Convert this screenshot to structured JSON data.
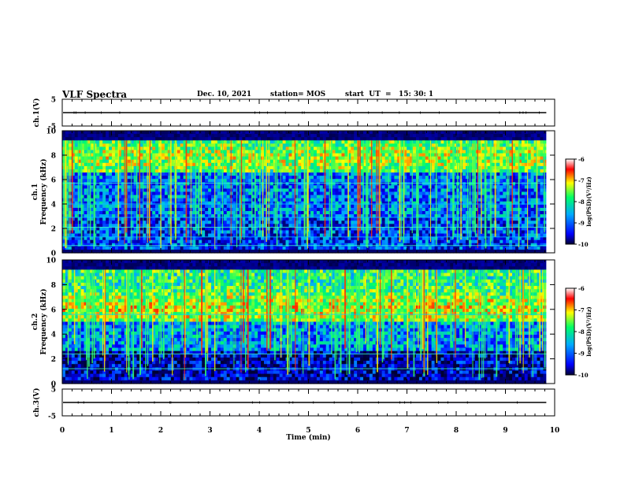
{
  "header": {
    "title": "VLF Spectra",
    "date": "Dec. 10, 2021",
    "station": "station= MOS",
    "start": "start  UT  =   15: 30: 1"
  },
  "chart_data": [
    {
      "type": "line",
      "panel": "ch1-waveform",
      "ylabel": "ch.1(V)",
      "ylim": [
        -5,
        5
      ],
      "yticks": [
        "5",
        "-5"
      ],
      "values": [
        0
      ],
      "color": "#000000"
    },
    {
      "type": "heatmap",
      "panel": "ch1-spectrogram",
      "ylabel_top": "ch.1",
      "ylabel": "Frequency (kHz)",
      "ylim": [
        0,
        10
      ],
      "yticks": [
        "0",
        "2",
        "4",
        "6",
        "8",
        "10"
      ],
      "xlim": [
        0,
        10
      ],
      "colorbar": {
        "label": "log(PSD)(V²/Hz)",
        "range": [
          -10,
          -6
        ],
        "ticks": [
          "-6",
          "-7",
          "-8",
          "-9",
          "-10"
        ]
      },
      "colormap": [
        "#000033",
        "#0000ff",
        "#00aaff",
        "#00ff66",
        "#ffff00",
        "#ff0000",
        "#ffffff"
      ]
    },
    {
      "type": "heatmap",
      "panel": "ch2-spectrogram",
      "ylabel_top": "ch.2",
      "ylabel": "Frequency (kHz)",
      "ylim": [
        0,
        10
      ],
      "yticks": [
        "0",
        "2",
        "4",
        "6",
        "8",
        "10"
      ],
      "xlim": [
        0,
        10
      ],
      "colorbar": {
        "label": "log(PSD)(V²/Hz)",
        "range": [
          -10,
          -6
        ],
        "ticks": [
          "-6",
          "-7",
          "-8",
          "-9",
          "-10"
        ]
      },
      "colormap": [
        "#000033",
        "#0000ff",
        "#00aaff",
        "#00ff66",
        "#ffff00",
        "#ff0000",
        "#ffffff"
      ]
    },
    {
      "type": "line",
      "panel": "ch3-waveform",
      "ylabel": "ch.3(V)",
      "ylim": [
        -5,
        5
      ],
      "yticks": [
        "5",
        "-5"
      ],
      "values": [
        0
      ],
      "color": "#000000"
    }
  ],
  "xaxis": {
    "label": "Time (min)",
    "range": [
      0,
      10
    ],
    "ticks": [
      "0",
      "1",
      "2",
      "3",
      "4",
      "5",
      "6",
      "7",
      "8",
      "9",
      "10"
    ]
  }
}
